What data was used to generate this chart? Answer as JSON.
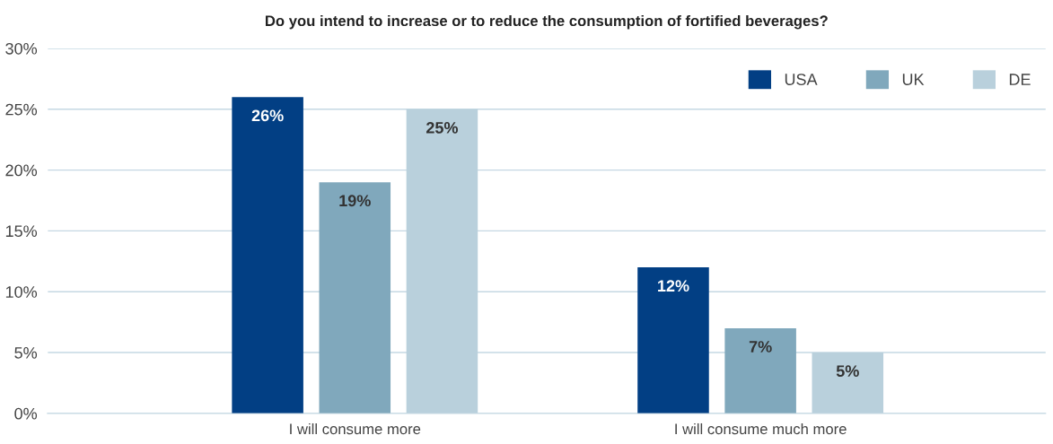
{
  "chart_data": {
    "type": "bar",
    "title": "Do you intend to increase or to reduce the consumption of fortified beverages?",
    "categories": [
      "I will consume more",
      "I will consume much more"
    ],
    "series": [
      {
        "name": "USA",
        "color": "#023f84",
        "values": [
          26,
          12
        ],
        "value_labels": [
          "26%",
          "12%"
        ]
      },
      {
        "name": "UK",
        "color": "#80a8bc",
        "values": [
          19,
          7
        ],
        "value_labels": [
          "19%",
          "7%"
        ]
      },
      {
        "name": "DE",
        "color": "#b9d0dc",
        "values": [
          25,
          5
        ],
        "value_labels": [
          "25%",
          "5%"
        ]
      }
    ],
    "ylim": [
      0,
      30
    ],
    "yticks": [
      {
        "value": 0,
        "label": "0%"
      },
      {
        "value": 5,
        "label": "5%"
      },
      {
        "value": 10,
        "label": "10%"
      },
      {
        "value": 15,
        "label": "15%"
      },
      {
        "value": 20,
        "label": "20%"
      },
      {
        "value": 25,
        "label": "25%"
      },
      {
        "value": 30,
        "label": "30%"
      }
    ],
    "grid": "y",
    "legend": "top right"
  }
}
